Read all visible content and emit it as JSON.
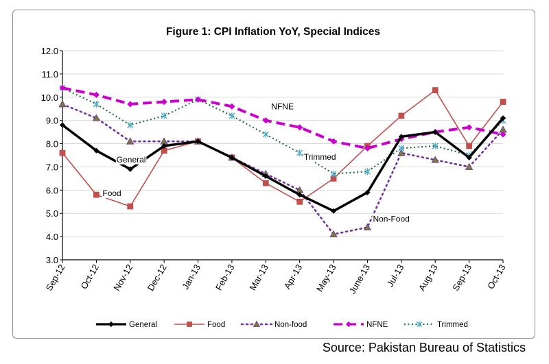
{
  "chart_data": {
    "type": "line",
    "title": "Figure 1: CPI Inflation YoY, Special Indices",
    "xlabel": "",
    "ylabel": "",
    "ylim": [
      3.0,
      12.0
    ],
    "yticks": [
      "3.0",
      "4.0",
      "5.0",
      "6.0",
      "7.0",
      "8.0",
      "9.0",
      "10.0",
      "11.0",
      "12.0"
    ],
    "categories": [
      "Sep-12",
      "Oct-12",
      "Nov-12",
      "Dec-12",
      "Jan-13",
      "Feb-13",
      "Mar-13",
      "Apr-13",
      "May-13",
      "June-13",
      "Jul-13",
      "Aug-13",
      "Sep-13",
      "Oct-13"
    ],
    "series": [
      {
        "name": "General",
        "color": "#000000",
        "values": [
          8.8,
          7.7,
          6.9,
          7.9,
          8.1,
          7.4,
          6.6,
          5.8,
          5.1,
          5.9,
          8.3,
          8.5,
          7.4,
          9.1
        ]
      },
      {
        "name": "Food",
        "color": "#c0504d",
        "values": [
          7.6,
          5.8,
          5.3,
          7.7,
          8.1,
          7.4,
          6.3,
          5.5,
          6.5,
          7.9,
          9.2,
          10.3,
          7.9,
          9.8
        ]
      },
      {
        "name": "Non-food",
        "color": "#7030a0",
        "values": [
          9.7,
          9.1,
          8.1,
          8.1,
          8.1,
          7.4,
          6.7,
          6.0,
          4.1,
          4.4,
          7.6,
          7.3,
          7.0,
          8.6
        ]
      },
      {
        "name": "NFNE",
        "color": "#cc00cc",
        "values": [
          10.4,
          10.1,
          9.7,
          9.8,
          9.9,
          9.6,
          9.0,
          8.7,
          8.1,
          7.8,
          8.2,
          8.5,
          8.7,
          8.4
        ]
      },
      {
        "name": "Trimmed",
        "color": "#1f6f3f",
        "values": [
          10.4,
          9.7,
          8.8,
          9.2,
          9.9,
          9.2,
          8.4,
          7.6,
          6.7,
          6.8,
          7.8,
          7.9,
          7.5,
          9.0
        ]
      }
    ],
    "annotations": [
      {
        "text": "NFNE",
        "series": "NFNE",
        "index": 6
      },
      {
        "text": "General",
        "series": "General",
        "index": 2
      },
      {
        "text": "Trimmed",
        "series": "Trimmed",
        "index": 7
      },
      {
        "text": "Food",
        "series": "Food",
        "index": 1
      },
      {
        "text": "Non-Food",
        "series": "Non-food",
        "index": 9
      }
    ],
    "legend": {
      "position": "bottom",
      "entries": [
        "General",
        "Food",
        "Non-food",
        "NFNE",
        "Trimmed"
      ]
    }
  },
  "source": "Source: Pakistan Bureau of Statistics"
}
